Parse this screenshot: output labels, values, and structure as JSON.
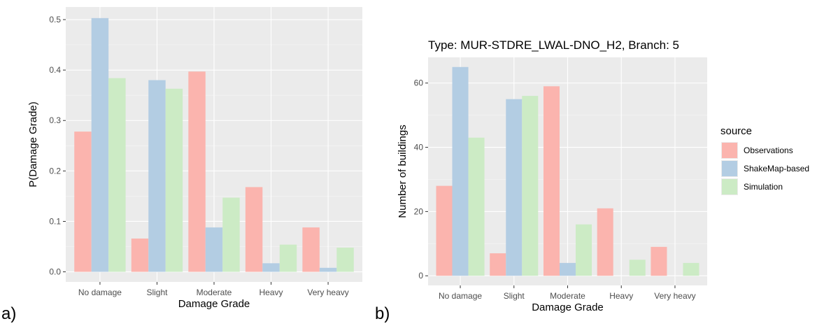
{
  "panel_labels": {
    "a": "a)",
    "b": "b)"
  },
  "legend": {
    "title": "source",
    "entries": [
      "Observations",
      "ShakeMap-based",
      "Simulation"
    ]
  },
  "colors": {
    "Observations": "#fbb4ae",
    "ShakeMap-based": "#b3cde3",
    "Simulation": "#ccebc5",
    "panel_bg": "#ebebeb",
    "grid_major": "#ffffff"
  },
  "chart_data": [
    {
      "type": "bar",
      "title": "",
      "xlabel": "Damage Grade",
      "ylabel": "P(Damage Grade)",
      "categories": [
        "No damage",
        "Slight",
        "Moderate",
        "Heavy",
        "Very heavy"
      ],
      "ylim": [
        -0.02,
        0.525
      ],
      "yticks": [
        0.0,
        0.1,
        0.2,
        0.3,
        0.4,
        0.5
      ],
      "ytick_labels": [
        "0.0",
        "0.1",
        "0.2",
        "0.3",
        "0.4",
        "0.5"
      ],
      "grid": true,
      "legend": "none",
      "series": [
        {
          "name": "Observations",
          "values": [
            0.278,
            0.066,
            0.397,
            0.168,
            0.088
          ]
        },
        {
          "name": "ShakeMap-based",
          "values": [
            0.503,
            0.38,
            0.088,
            0.017,
            0.008
          ]
        },
        {
          "name": "Simulation",
          "values": [
            0.384,
            0.363,
            0.147,
            0.054,
            0.048
          ]
        }
      ]
    },
    {
      "type": "bar",
      "title": "Type: MUR-STDRE_LWAL-DNO_H2, Branch: 5",
      "xlabel": "Damage Grade",
      "ylabel": "Number of buildings",
      "categories": [
        "No damage",
        "Slight",
        "Moderate",
        "Heavy",
        "Very heavy"
      ],
      "ylim": [
        -3,
        68
      ],
      "yticks": [
        0,
        20,
        40,
        60
      ],
      "ytick_labels": [
        "0",
        "20",
        "40",
        "60"
      ],
      "grid": true,
      "legend": "right",
      "series": [
        {
          "name": "Observations",
          "values": [
            28,
            7,
            59,
            21,
            9
          ]
        },
        {
          "name": "ShakeMap-based",
          "values": [
            65,
            55,
            4,
            0,
            0
          ]
        },
        {
          "name": "Simulation",
          "values": [
            43,
            56,
            16,
            5,
            4
          ]
        }
      ]
    }
  ]
}
